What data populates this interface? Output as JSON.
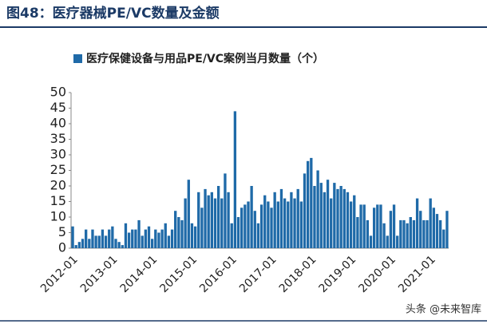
{
  "header": {
    "title": "图48：医疗器械PE/VC数量及金额"
  },
  "chart_data": {
    "type": "bar",
    "categories": [
      "2012-01",
      null,
      null,
      null,
      null,
      null,
      null,
      null,
      null,
      null,
      null,
      null,
      "2013-01",
      null,
      null,
      null,
      null,
      null,
      null,
      null,
      null,
      null,
      null,
      null,
      "2014-01",
      null,
      null,
      null,
      null,
      null,
      null,
      null,
      null,
      null,
      null,
      null,
      "2015-01",
      null,
      null,
      null,
      null,
      null,
      null,
      null,
      null,
      null,
      null,
      null,
      "2016-01",
      null,
      null,
      null,
      null,
      null,
      null,
      null,
      null,
      null,
      null,
      null,
      "2017-01",
      null,
      null,
      null,
      null,
      null,
      null,
      null,
      null,
      null,
      null,
      null,
      "2018-01",
      null,
      null,
      null,
      null,
      null,
      null,
      null,
      null,
      null,
      null,
      null,
      "2019-01",
      null,
      null,
      null,
      null,
      null,
      null,
      null,
      null,
      null,
      null,
      null,
      "2020-01",
      null,
      null,
      null,
      null,
      null,
      null,
      null,
      null,
      null,
      null,
      null,
      "2021-01",
      null,
      null,
      null,
      null,
      null
    ],
    "series": [
      {
        "name": "医疗保健设备与用品PE/VC案例当月数量（个）",
        "color": "#1f6aa8",
        "values": [
          7,
          1,
          2,
          3,
          6,
          3,
          6,
          4,
          4,
          6,
          4,
          6,
          7,
          3,
          2,
          1,
          8,
          5,
          6,
          6,
          9,
          4,
          6,
          7,
          3,
          6,
          5,
          6,
          8,
          4,
          6,
          12,
          10,
          9,
          16,
          22,
          8,
          7,
          18,
          13,
          19,
          17,
          18,
          16,
          20,
          16,
          24,
          18,
          8,
          44,
          10,
          13,
          14,
          15,
          20,
          12,
          8,
          14,
          17,
          15,
          13,
          18,
          15,
          19,
          16,
          15,
          18,
          16,
          19,
          15,
          24,
          28,
          29,
          20,
          25,
          21,
          18,
          22,
          16,
          21,
          19,
          20,
          19,
          18,
          15,
          17,
          10,
          14,
          14,
          9,
          4,
          13,
          14,
          14,
          8,
          4,
          12,
          14,
          4,
          9,
          9,
          8,
          10,
          9,
          16,
          12,
          9,
          9,
          16,
          13,
          11,
          9,
          6,
          12
        ]
      }
    ],
    "ylim": [
      0,
      50
    ],
    "yticks": [
      0,
      5,
      10,
      15,
      20,
      25,
      30,
      35,
      40,
      45,
      50
    ],
    "grid": false
  },
  "watermark": "头条 @未来智库"
}
